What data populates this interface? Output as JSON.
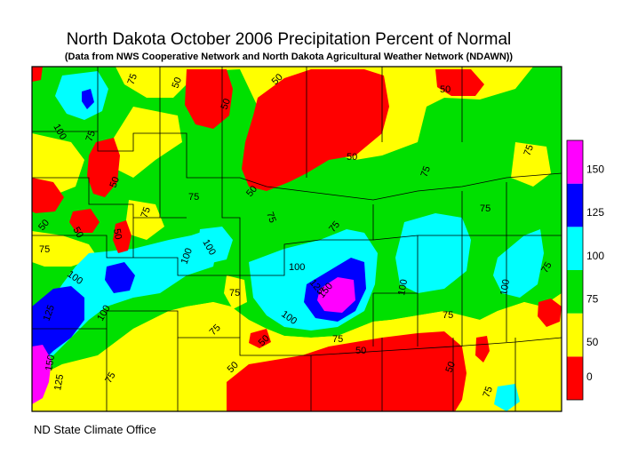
{
  "title": "North Dakota October 2006 Precipitation Percent of Normal",
  "subtitle": "(Data from NWS Cooperative Network and North Dakota Agricultural Weather Network (NDAWN))",
  "credit": "ND State Climate Office",
  "legend": {
    "bins": [
      {
        "label": "0",
        "color": "#ff0000"
      },
      {
        "label": "50",
        "color": "#ffff00"
      },
      {
        "label": "75",
        "color": "#00e000"
      },
      {
        "label": "100",
        "color": "#00ffff"
      },
      {
        "label": "125",
        "color": "#0000ff"
      },
      {
        "label": "150",
        "color": "#ff00ff"
      }
    ]
  },
  "contour_labels": [
    "50",
    "75",
    "100",
    "125",
    "150"
  ]
}
